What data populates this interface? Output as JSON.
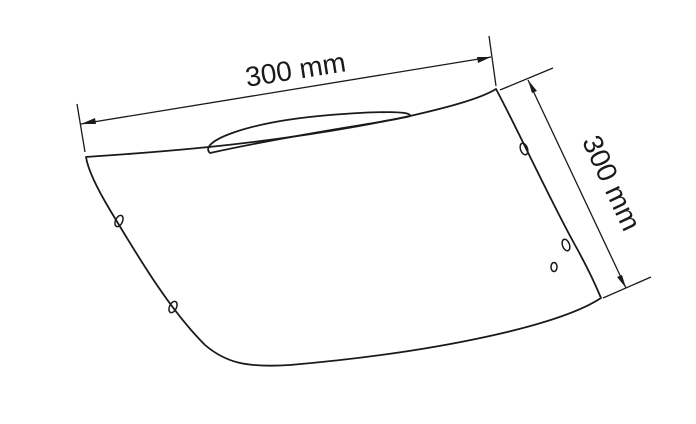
{
  "dimensions": {
    "width_label": "300 mm",
    "depth_label": "300 mm"
  },
  "colors": {
    "line": "#1a1a1a",
    "background": "#ffffff"
  }
}
